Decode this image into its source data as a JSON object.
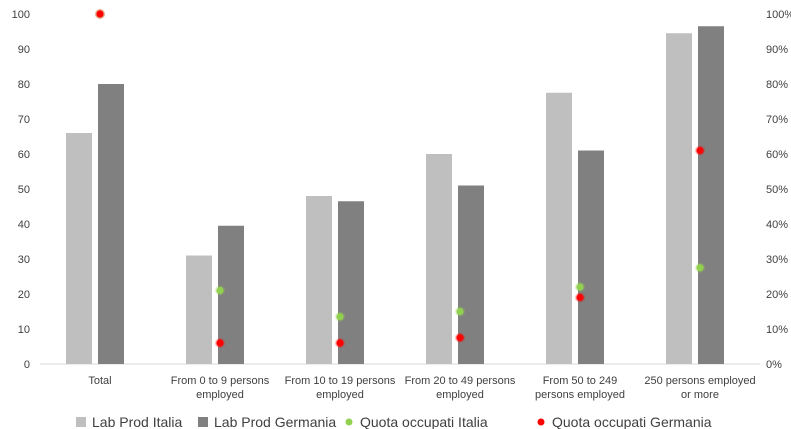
{
  "chart_data": {
    "type": "bar",
    "categories": [
      [
        "Total"
      ],
      [
        "From 0 to 9 persons",
        "employed"
      ],
      [
        "From 10 to 19 persons",
        "employed"
      ],
      [
        "From 20 to 49 persons",
        "employed"
      ],
      [
        "From 50 to 249",
        "persons employed"
      ],
      [
        "250 persons employed",
        "or more"
      ]
    ],
    "series": [
      {
        "name": "Lab Prod Italia",
        "kind": "bar",
        "axis": "left",
        "color": "#bfbfbf",
        "values": [
          66,
          31,
          48,
          60,
          77.5,
          94.5
        ]
      },
      {
        "name": "Lab Prod Germania",
        "kind": "bar",
        "axis": "left",
        "color": "#808080",
        "values": [
          80,
          39.5,
          46.5,
          51,
          61,
          96.5
        ]
      },
      {
        "name": "Quota occupati Italia",
        "kind": "scatter",
        "axis": "right",
        "color": "#92d050",
        "values": [
          100,
          21,
          13.5,
          15,
          22,
          27.5
        ]
      },
      {
        "name": "Quota occupati Germania",
        "kind": "scatter",
        "axis": "right",
        "color": "#ff0000",
        "values": [
          100,
          6,
          6,
          7.5,
          19,
          61
        ]
      }
    ],
    "yleft": {
      "min": 0,
      "max": 100,
      "step": 10,
      "ticks": [
        "0",
        "10",
        "20",
        "30",
        "40",
        "50",
        "60",
        "70",
        "80",
        "90",
        "100"
      ]
    },
    "yright": {
      "min": 0,
      "max": 100,
      "step": 10,
      "ticks": [
        "0%",
        "10%",
        "20%",
        "30%",
        "40%",
        "50%",
        "60%",
        "70%",
        "80%",
        "90%",
        "100%"
      ]
    },
    "grid": false,
    "legend": "bottom"
  }
}
